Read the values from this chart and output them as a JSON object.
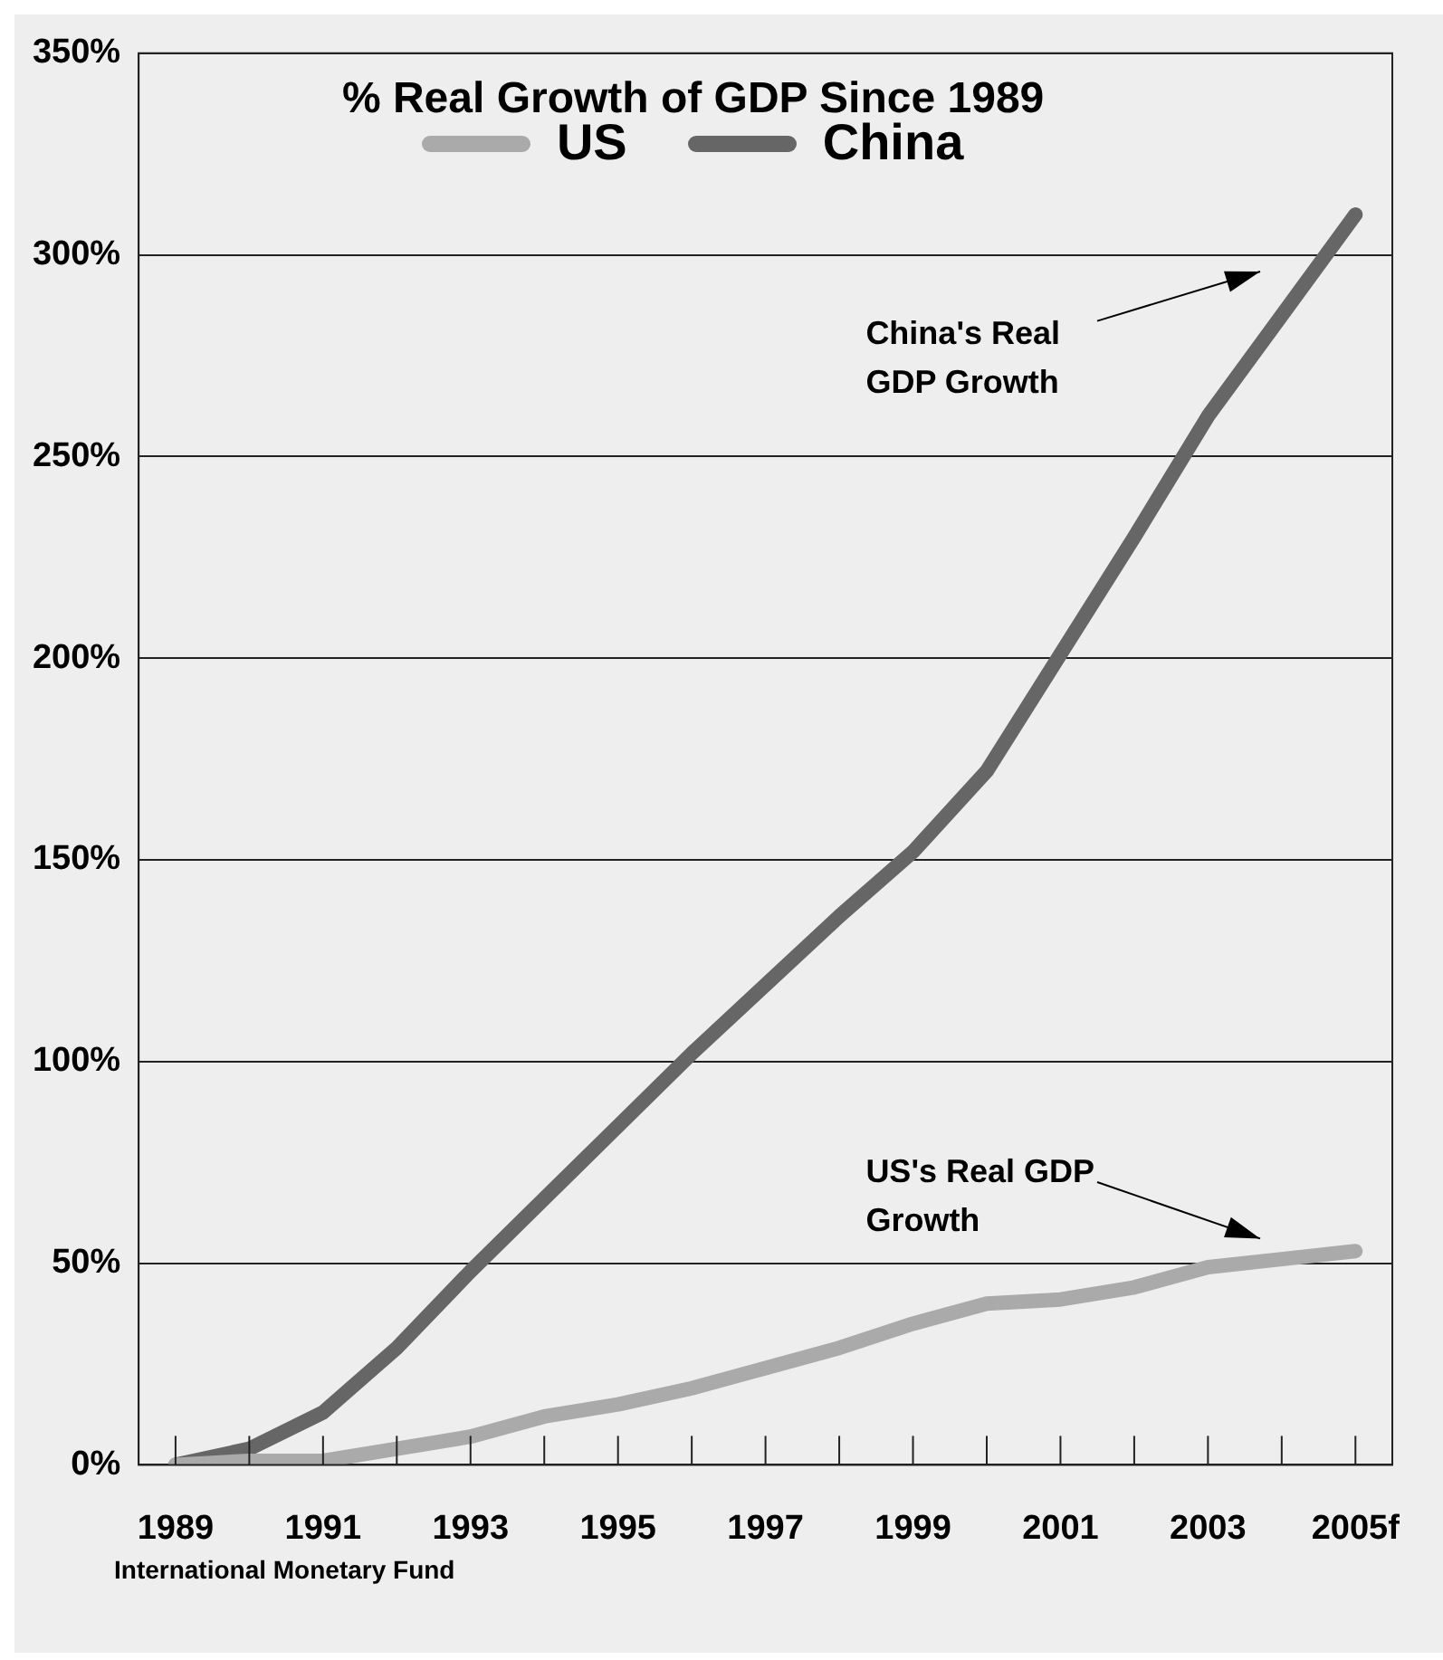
{
  "chart_data": {
    "type": "line",
    "title": "% Real Growth of GDP Since 1989",
    "categories": [
      "1989",
      null,
      "1991",
      null,
      "1993",
      null,
      "1995",
      null,
      "1997",
      null,
      "1999",
      null,
      "2001",
      null,
      "2003",
      null,
      "2005f"
    ],
    "series": [
      {
        "name": "US",
        "color": "#aaaaaa",
        "values": [
          0,
          1,
          1,
          4,
          7,
          12,
          15,
          19,
          24,
          29,
          35,
          40,
          41,
          44,
          49,
          51,
          53
        ]
      },
      {
        "name": "China",
        "color": "#666666",
        "values": [
          0,
          4,
          13,
          29,
          48,
          66,
          84,
          102,
          119,
          136,
          152,
          172,
          201,
          230,
          260,
          285,
          310
        ]
      }
    ],
    "ylim": [
      0,
      350
    ],
    "yticks": [
      {
        "value": 0,
        "label": "0%"
      },
      {
        "value": 50,
        "label": "50%"
      },
      {
        "value": 100,
        "label": "100%"
      },
      {
        "value": 150,
        "label": "150%"
      },
      {
        "value": 200,
        "label": "200%"
      },
      {
        "value": 250,
        "label": "250%"
      },
      {
        "value": 300,
        "label": "300%"
      },
      {
        "value": 350,
        "label": "350%"
      }
    ],
    "grid": "y",
    "legend": "top",
    "marker": "none",
    "line_style": "solid",
    "annotations": [
      "China's Real GDP Growth",
      "US's Real GDP Growth",
      "International Monetary Fund"
    ]
  }
}
